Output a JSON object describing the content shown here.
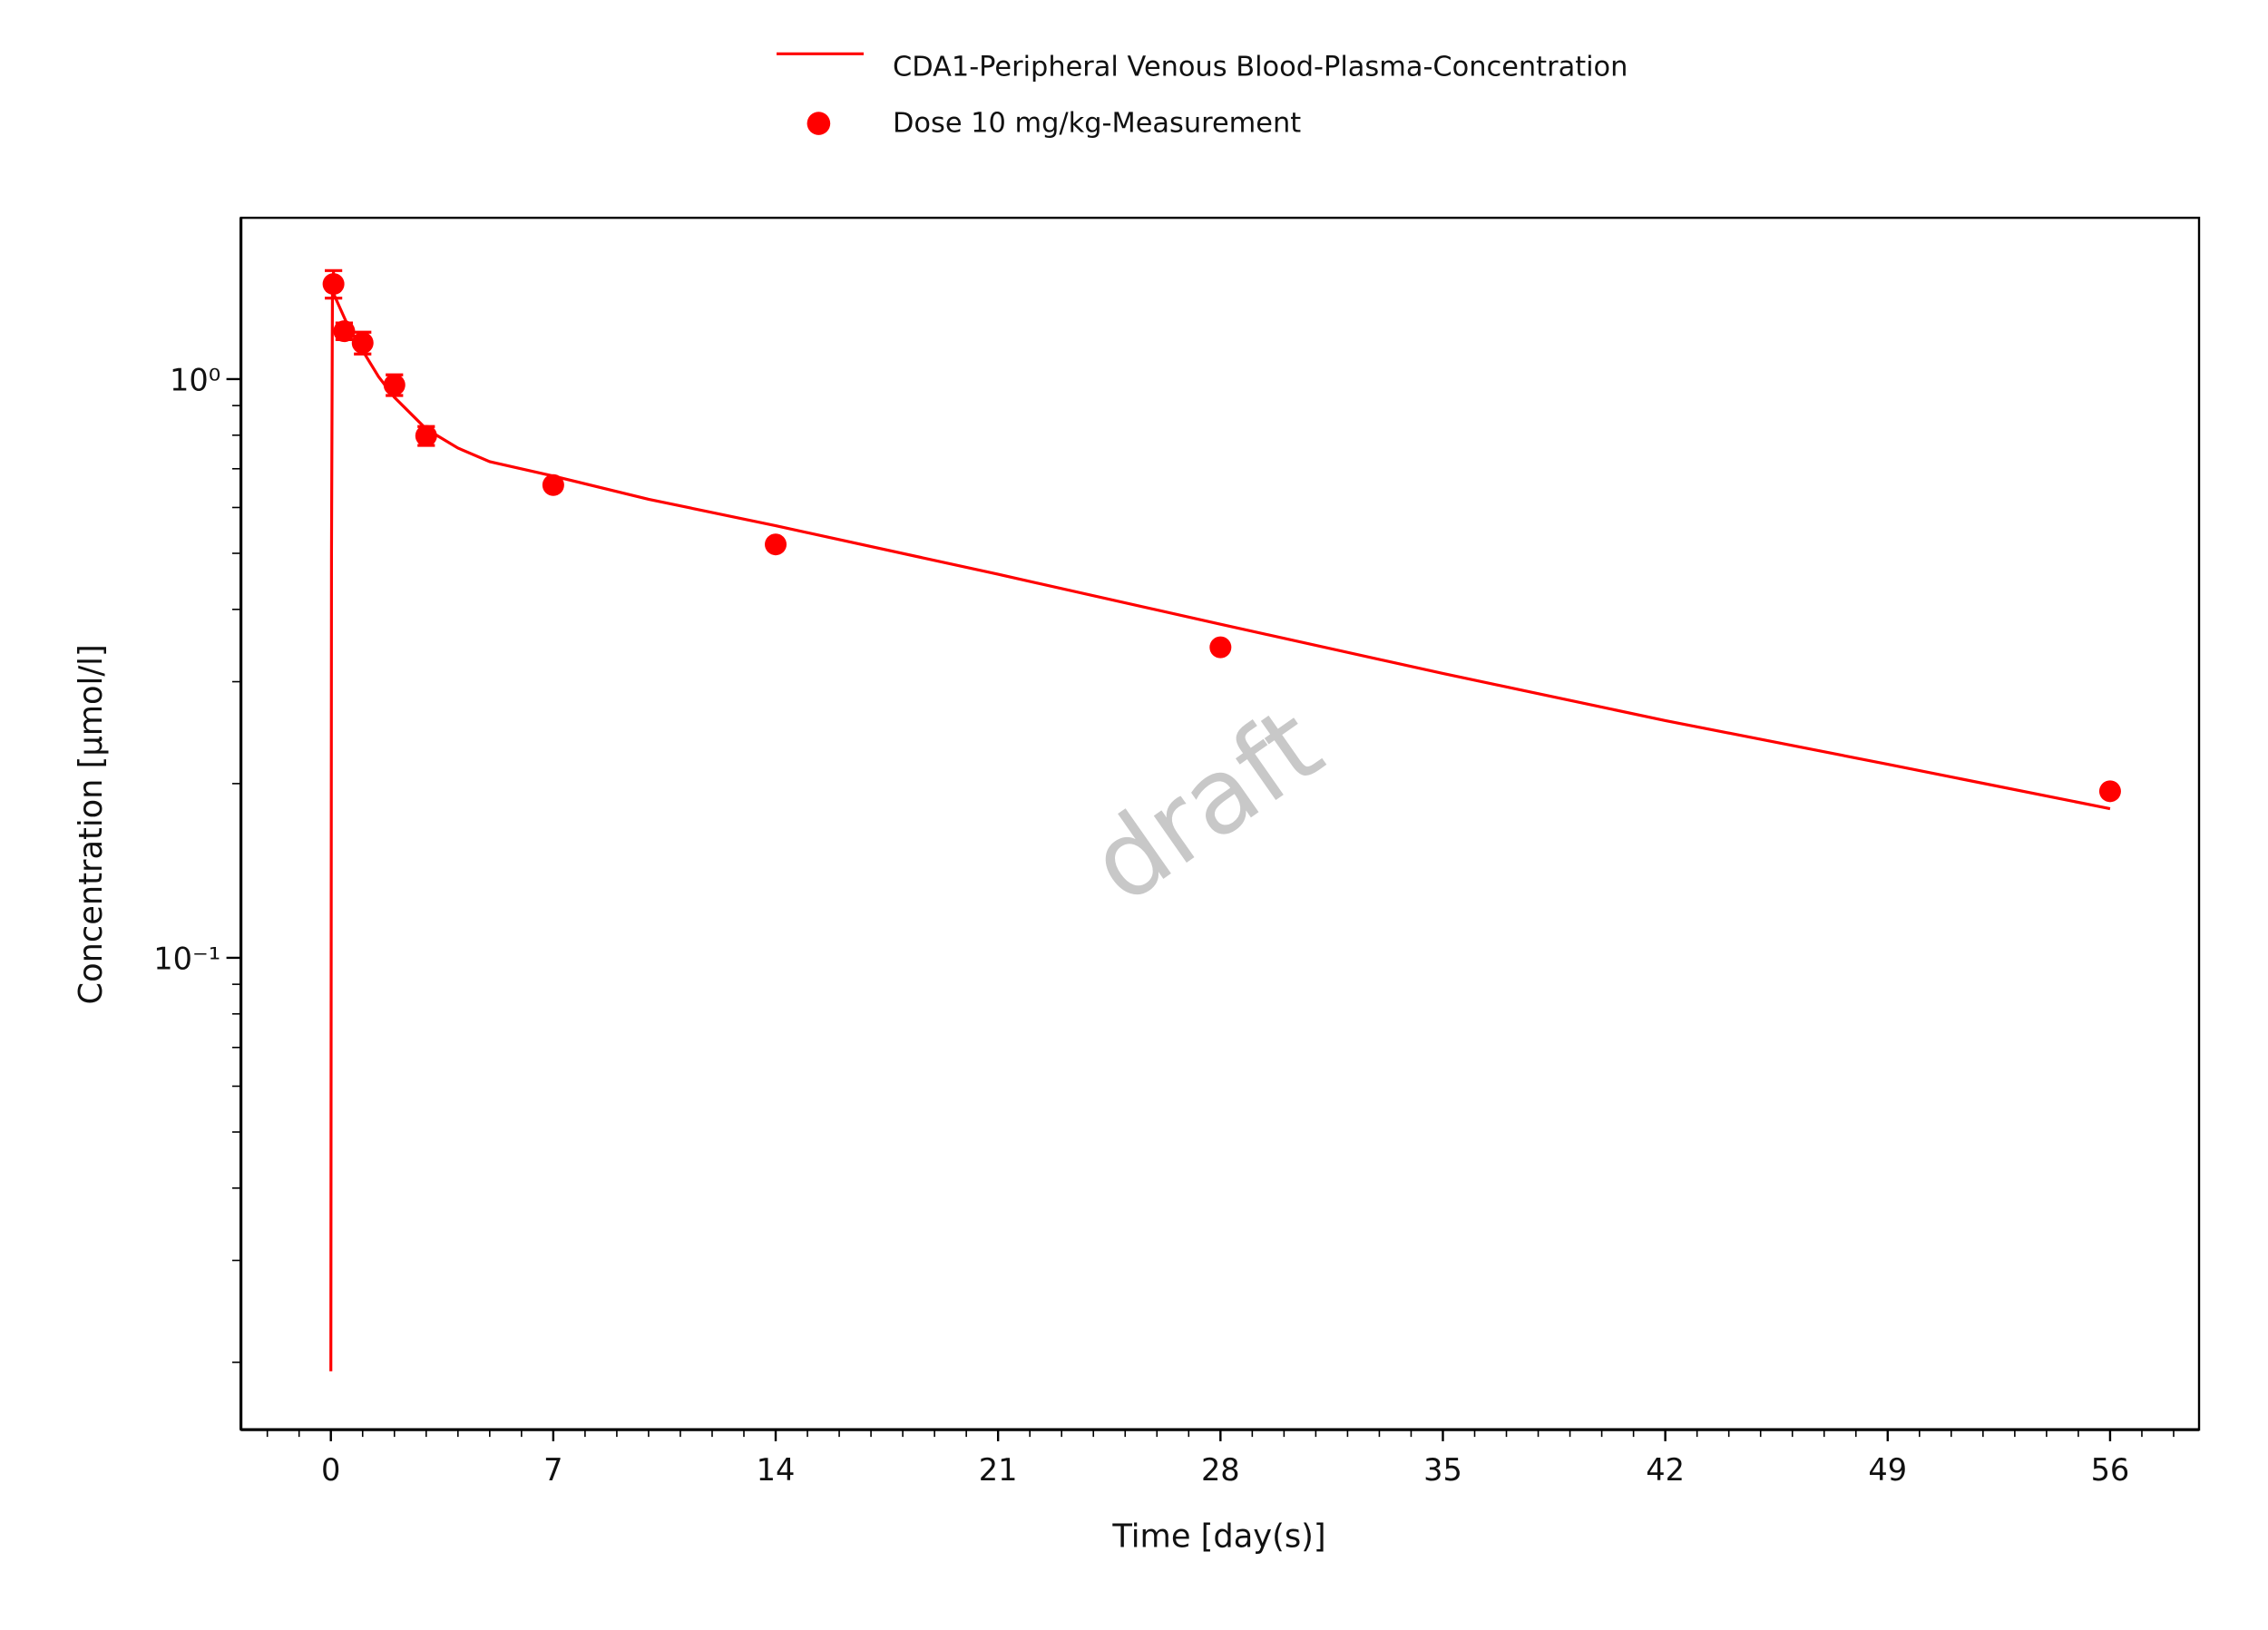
{
  "chart_data": {
    "type": "line",
    "xlabel": "Time [day(s)]",
    "ylabel": "Concentration [µmol/l]",
    "watermark": "draft",
    "xlim": [
      -2.83,
      58.8
    ],
    "xticks": [
      0,
      7,
      14,
      21,
      28,
      35,
      42,
      49,
      56
    ],
    "xminor_ticks": [
      -2,
      -1,
      1,
      2,
      3,
      4,
      5,
      6,
      8,
      9,
      10,
      11,
      12,
      13,
      15,
      16,
      17,
      18,
      19,
      20,
      22,
      23,
      24,
      25,
      26,
      27,
      29,
      30,
      31,
      32,
      33,
      34,
      36,
      37,
      38,
      39,
      40,
      41,
      43,
      44,
      45,
      46,
      47,
      48,
      50,
      51,
      52,
      53,
      54,
      55,
      57,
      58
    ],
    "ylim": [
      0.0153,
      1.9
    ],
    "ylog": true,
    "yticks": [
      {
        "value": 1,
        "label": "10⁰"
      },
      {
        "value": 0.1,
        "label": "10⁻¹"
      }
    ],
    "yminor_ticks": [
      0.02,
      0.03,
      0.04,
      0.05,
      0.06,
      0.07,
      0.08,
      0.09,
      0.2,
      0.3,
      0.4,
      0.5,
      0.6,
      0.7,
      0.8,
      0.9
    ],
    "series": [
      {
        "name": "CDA1-Peripheral Venous Blood-Plasma-Concentration",
        "type": "line",
        "color": "#ff0000",
        "x": [
          0,
          0.02,
          0.05,
          0.2,
          0.5,
          1,
          1.5,
          2,
          3,
          4,
          5,
          7,
          10,
          14,
          21,
          28,
          35,
          42,
          49,
          56
        ],
        "values": [
          0.0193,
          0.5,
          1.42,
          1.36,
          1.25,
          1.12,
          1.01,
          0.93,
          0.82,
          0.76,
          0.72,
          0.68,
          0.62,
          0.558,
          0.46,
          0.377,
          0.31,
          0.257,
          0.216,
          0.181
        ]
      },
      {
        "name": "Dose 10 mg/kg-Measurement",
        "type": "scatter",
        "color": "#ff0000",
        "x": [
          0.083,
          0.42,
          1,
          2,
          3,
          7,
          14,
          28,
          56
        ],
        "values": [
          1.46,
          1.21,
          1.155,
          0.977,
          0.798,
          0.656,
          0.518,
          0.344,
          0.194
        ],
        "errors": [
          0.08,
          0.04,
          0.05,
          0.04,
          0.03,
          null,
          null,
          null,
          null
        ]
      }
    ]
  }
}
